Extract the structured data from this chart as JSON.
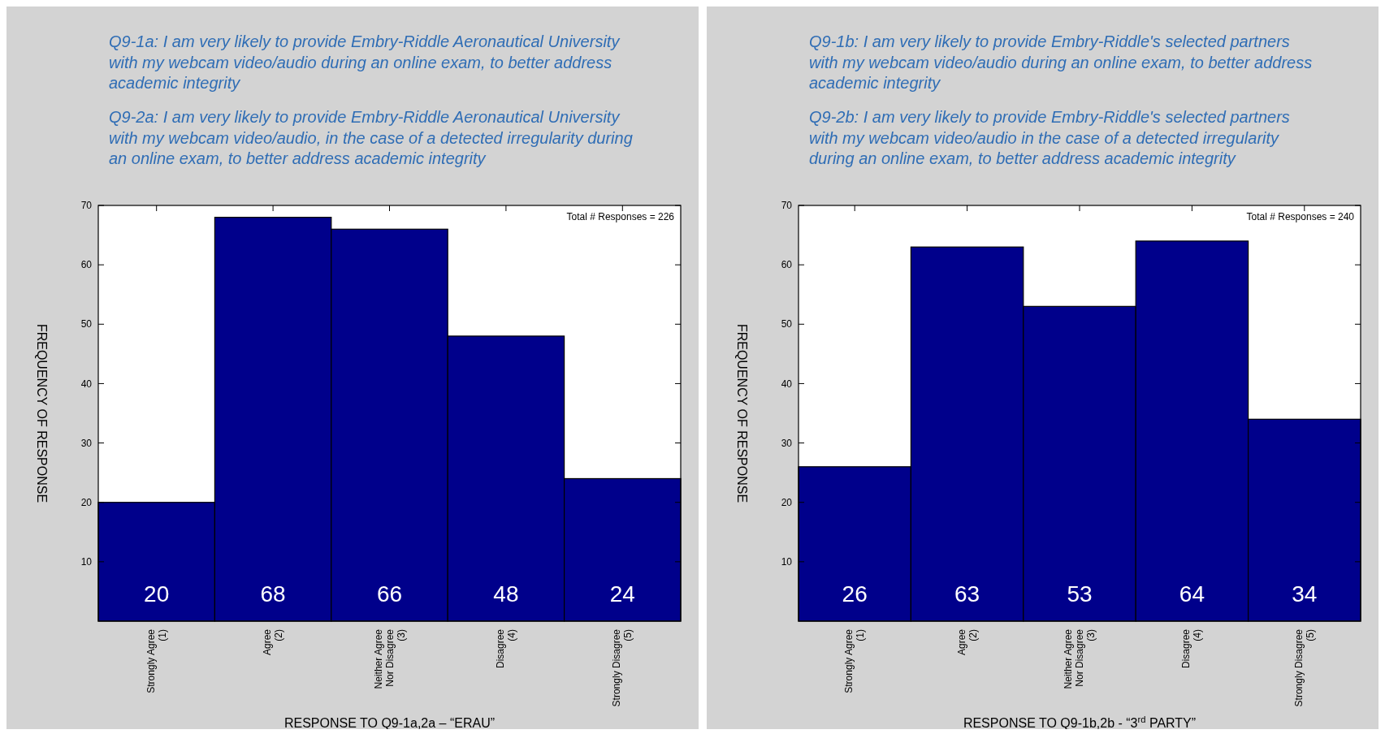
{
  "chart_data": [
    {
      "type": "bar",
      "title": "Q9-1a: I am very likely to provide Embry-Riddle Aeronautical University with my webcam video/audio during an online exam, to better address academic integrity",
      "subtitle": "Q9-2a: I am very likely to provide Embry-Riddle Aeronautical University with my webcam video/audio, in the case of a detected irregularity during an online exam, to better address academic integrity",
      "xlabel": "RESPONSE TO Q9-1a,2a – “ERAU”",
      "ylabel": "FREQUENCY OF RESPONSE",
      "annotations": [
        "Total # Responses = 226"
      ],
      "categories": [
        "Strongly Agree\n(1)",
        "Agree\n(2)",
        "Neither Agree\nNor Disagree\n(3)",
        "Disagree\n(4)",
        "Strongly Disagree\n(5)"
      ],
      "values": [
        20,
        68,
        66,
        48,
        24
      ],
      "color": "#00008b",
      "data_labels": true,
      "ylim": [
        0,
        70
      ],
      "yticks": [
        10,
        20,
        30,
        40,
        50,
        60,
        70
      ]
    },
    {
      "type": "bar",
      "title": "Q9-1b: I am very likely to provide Embry-Riddle's selected partners with my webcam video/audio during an online exam, to better address academic integrity",
      "subtitle": "Q9-2b: I am very likely to provide Embry-Riddle's selected partners with my webcam video/audio in the case of a detected irregularity during an online exam, to better address academic integrity",
      "xlabel": "RESPONSE TO Q9-1b,2b - “3$^{rd}$ PARTY”",
      "ylabel": "FREQUENCY OF RESPONSE",
      "annotations": [
        "Total # Responses = 240"
      ],
      "categories": [
        "Strongly Agree\n(1)",
        "Agree\n(2)",
        "Neither Agree\nNor Disagree\n(3)",
        "Disagree\n(4)",
        "Strongly Disagree\n(5)"
      ],
      "values": [
        26,
        63,
        53,
        64,
        34
      ],
      "color": "#00008b",
      "data_labels": true,
      "ylim": [
        0,
        70
      ],
      "yticks": [
        10,
        20,
        30,
        40,
        50,
        60,
        70
      ]
    }
  ]
}
